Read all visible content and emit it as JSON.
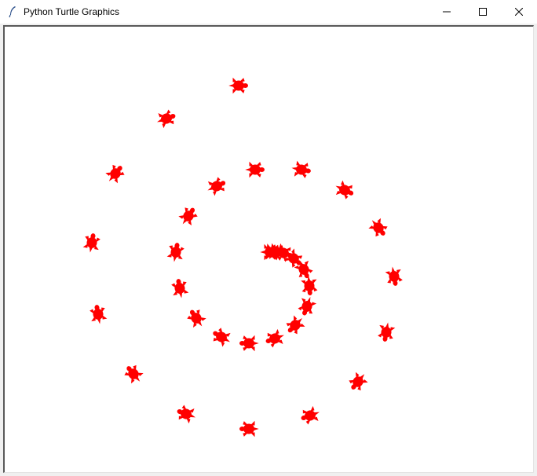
{
  "window": {
    "title": "Python Turtle Graphics",
    "icon": "feather-icon",
    "controls": [
      "minimize-icon",
      "maximize-icon",
      "close-icon"
    ]
  },
  "canvas": {
    "background": "#ffffff",
    "turtle_shape": "turtle",
    "turtle_color": "#ff0000",
    "stamp_count": 33
  }
}
